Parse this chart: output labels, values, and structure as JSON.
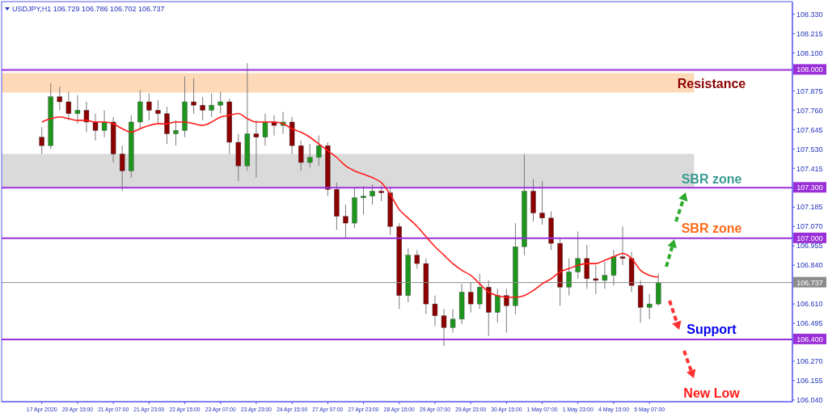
{
  "chart_data": {
    "type": "candlestick",
    "title": "USDJPY,H1  106.729 106.786 106.702 106.737",
    "categories": [
      "17 Apr 2020",
      null,
      null,
      null,
      "20 Apr 15:00",
      null,
      null,
      null,
      "21 Apr 07:00",
      null,
      null,
      null,
      "21 Apr 23:00",
      null,
      null,
      null,
      "22 Apr 15:00",
      null,
      null,
      null,
      "23 Apr 07:00",
      null,
      null,
      null,
      "23 Apr 23:00",
      null,
      null,
      null,
      "24 Apr 15:00",
      null,
      null,
      null,
      "27 Apr 07:00",
      null,
      null,
      null,
      "27 Apr 23:00",
      null,
      null,
      null,
      "28 Apr 15:00",
      null,
      null,
      null,
      "29 Apr 07:00",
      null,
      null,
      null,
      "29 Apr 23:00",
      null,
      null,
      null,
      "30 Apr 15:00",
      null,
      null,
      null,
      "1 May 07:00",
      null,
      null,
      null,
      "1 May 23:00",
      null,
      null,
      null,
      "4 May 15:00",
      null,
      null,
      null,
      "5 May 07:00",
      null
    ],
    "ohlc": [
      [
        107.6,
        107.66,
        107.5,
        107.55
      ],
      [
        107.55,
        107.92,
        107.53,
        107.84
      ],
      [
        107.84,
        107.9,
        107.76,
        107.81
      ],
      [
        107.81,
        107.87,
        107.7,
        107.74
      ],
      [
        107.74,
        107.85,
        107.68,
        107.76
      ],
      [
        107.76,
        107.81,
        107.63,
        107.69
      ],
      [
        107.69,
        107.74,
        107.58,
        107.64
      ],
      [
        107.64,
        107.76,
        107.6,
        107.69
      ],
      [
        107.69,
        107.72,
        107.45,
        107.5
      ],
      [
        107.5,
        107.55,
        107.28,
        107.4
      ],
      [
        107.4,
        107.73,
        107.36,
        107.69
      ],
      [
        107.69,
        107.88,
        107.65,
        107.81
      ],
      [
        107.81,
        107.86,
        107.7,
        107.76
      ],
      [
        107.76,
        107.82,
        107.68,
        107.74
      ],
      [
        107.74,
        107.78,
        107.56,
        107.62
      ],
      [
        107.62,
        107.7,
        107.55,
        107.64
      ],
      [
        107.64,
        107.96,
        107.6,
        107.81
      ],
      [
        107.81,
        107.95,
        107.74,
        107.79
      ],
      [
        107.79,
        107.84,
        107.7,
        107.76
      ],
      [
        107.76,
        107.86,
        107.72,
        107.79
      ],
      [
        107.79,
        107.87,
        107.74,
        107.81
      ],
      [
        107.81,
        107.83,
        107.5,
        107.57
      ],
      [
        107.57,
        107.62,
        107.34,
        107.43
      ],
      [
        107.43,
        108.04,
        107.4,
        107.62
      ],
      [
        107.62,
        107.7,
        107.36,
        107.6
      ],
      [
        107.6,
        107.74,
        107.55,
        107.69
      ],
      [
        107.69,
        107.73,
        107.61,
        107.67
      ],
      [
        107.67,
        107.75,
        107.62,
        107.69
      ],
      [
        107.69,
        107.72,
        107.5,
        107.55
      ],
      [
        107.55,
        107.58,
        107.4,
        107.45
      ],
      [
        107.45,
        107.56,
        107.42,
        107.48
      ],
      [
        107.48,
        107.61,
        107.43,
        107.55
      ],
      [
        107.55,
        107.57,
        107.25,
        107.29
      ],
      [
        107.29,
        107.33,
        107.05,
        107.13
      ],
      [
        107.13,
        107.2,
        107.0,
        107.09
      ],
      [
        107.09,
        107.3,
        107.06,
        107.24
      ],
      [
        107.24,
        107.31,
        107.14,
        107.25
      ],
      [
        107.25,
        107.32,
        107.2,
        107.28
      ],
      [
        107.28,
        107.31,
        107.22,
        107.27
      ],
      [
        107.27,
        107.3,
        107.02,
        107.07
      ],
      [
        107.07,
        107.09,
        106.58,
        106.66
      ],
      [
        106.66,
        106.94,
        106.62,
        106.9
      ],
      [
        106.9,
        106.93,
        106.82,
        106.85
      ],
      [
        106.85,
        106.88,
        106.55,
        106.61
      ],
      [
        106.61,
        106.66,
        106.48,
        106.54
      ],
      [
        106.54,
        106.58,
        106.36,
        106.47
      ],
      [
        106.47,
        106.58,
        106.44,
        106.52
      ],
      [
        106.52,
        106.73,
        106.49,
        106.68
      ],
      [
        106.68,
        106.74,
        106.56,
        106.61
      ],
      [
        106.61,
        106.79,
        106.58,
        106.71
      ],
      [
        106.71,
        106.75,
        106.42,
        106.56
      ],
      [
        106.56,
        106.7,
        106.5,
        106.66
      ],
      [
        106.66,
        106.7,
        106.44,
        106.6
      ],
      [
        106.6,
        107.09,
        106.55,
        106.95
      ],
      [
        106.95,
        107.5,
        106.9,
        107.28
      ],
      [
        107.28,
        107.35,
        107.1,
        107.15
      ],
      [
        107.15,
        107.34,
        107.08,
        107.12
      ],
      [
        107.12,
        107.16,
        106.93,
        106.97
      ],
      [
        106.97,
        107.0,
        106.6,
        106.71
      ],
      [
        106.71,
        106.88,
        106.66,
        106.8
      ],
      [
        106.8,
        107.04,
        106.76,
        106.88
      ],
      [
        106.88,
        106.96,
        106.7,
        106.76
      ],
      [
        106.76,
        106.84,
        106.67,
        106.75
      ],
      [
        106.75,
        106.86,
        106.7,
        106.78
      ],
      [
        106.78,
        106.93,
        106.72,
        106.89
      ],
      [
        106.89,
        107.07,
        106.84,
        106.88
      ],
      [
        106.88,
        106.92,
        106.68,
        106.72
      ],
      [
        106.72,
        106.75,
        106.5,
        106.59
      ],
      [
        106.59,
        106.67,
        106.52,
        106.61
      ],
      [
        106.61,
        106.79,
        106.6,
        106.737
      ]
    ],
    "colors": [
      "#8b0000",
      "#1e961e",
      "#8b0000",
      "#8b0000",
      "#1e961e",
      "#8b0000",
      "#8b0000",
      "#1e961e",
      "#8b0000",
      "#8b0000",
      "#1e961e",
      "#1e961e",
      "#8b0000",
      "#8b0000",
      "#8b0000",
      "#1e961e",
      "#1e961e",
      "#8b0000",
      "#8b0000",
      "#1e961e",
      "#1e961e",
      "#8b0000",
      "#8b0000",
      "#1e961e",
      "#8b0000",
      "#1e961e",
      "#8b0000",
      "#1e961e",
      "#8b0000",
      "#8b0000",
      "#1e961e",
      "#1e961e",
      "#8b0000",
      "#8b0000",
      "#8b0000",
      "#1e961e",
      "#1e961e",
      "#1e961e",
      "#8b0000",
      "#8b0000",
      "#8b0000",
      "#1e961e",
      "#8b0000",
      "#8b0000",
      "#8b0000",
      "#8b0000",
      "#1e961e",
      "#1e961e",
      "#8b0000",
      "#1e961e",
      "#8b0000",
      "#1e961e",
      "#8b0000",
      "#1e961e",
      "#1e961e",
      "#8b0000",
      "#8b0000",
      "#8b0000",
      "#8b0000",
      "#1e961e",
      "#1e961e",
      "#8b0000",
      "#8b0000",
      "#1e961e",
      "#1e961e",
      "#8b0000",
      "#8b0000",
      "#8b0000",
      "#1e961e",
      "#1e961e"
    ],
    "series": [
      {
        "type": "line",
        "color": "#ff1a1a",
        "values": [
          107.69,
          107.71,
          107.72,
          107.71,
          107.7,
          107.7,
          107.69,
          107.69,
          107.68,
          107.65,
          107.63,
          107.65,
          107.67,
          107.68,
          107.68,
          107.69,
          107.69,
          107.68,
          107.67,
          107.69,
          107.72,
          107.73,
          107.74,
          107.71,
          107.69,
          107.69,
          107.69,
          107.68,
          107.65,
          107.63,
          107.6,
          107.56,
          107.52,
          107.48,
          107.43,
          107.4,
          107.38,
          107.36,
          107.33,
          107.26,
          107.17,
          107.12,
          107.07,
          107.01,
          106.95,
          106.9,
          106.85,
          106.81,
          106.78,
          106.73,
          106.68,
          106.66,
          106.65,
          106.65,
          106.66,
          106.69,
          106.73,
          106.76,
          106.8,
          106.82,
          106.84,
          106.85,
          106.85,
          106.87,
          106.89,
          106.91,
          106.88,
          106.81,
          106.78,
          106.77
        ]
      }
    ],
    "ylim": [
      106.03,
      108.4
    ],
    "yticks": [
      {
        "value": 108.33,
        "label": "108.330"
      },
      {
        "value": 108.215,
        "label": "108.215"
      },
      {
        "value": 108.1,
        "label": "108.100"
      },
      {
        "value": 107.875,
        "label": "107.875"
      },
      {
        "value": 107.76,
        "label": "107.760"
      },
      {
        "value": 107.645,
        "label": "107.645"
      },
      {
        "value": 107.53,
        "label": "107.530"
      },
      {
        "value": 107.415,
        "label": "107.415"
      },
      {
        "value": 107.185,
        "label": "107.185"
      },
      {
        "value": 107.07,
        "label": "107.070"
      },
      {
        "value": 106.955,
        "label": "106.955"
      },
      {
        "value": 106.84,
        "label": "106.840"
      },
      {
        "value": 106.61,
        "label": "106.610"
      },
      {
        "value": 106.495,
        "label": "106.495"
      },
      {
        "value": 106.27,
        "label": "106.270"
      },
      {
        "value": 106.155,
        "label": "106.155"
      },
      {
        "value": 106.04,
        "label": "106.040"
      }
    ],
    "ref_lines": [
      {
        "axis": "y",
        "value": 108.0,
        "label": "108.000",
        "color": "#9b30d9"
      },
      {
        "axis": "y",
        "value": 107.3,
        "label": "107.300",
        "color": "#9b30d9"
      },
      {
        "axis": "y",
        "value": 107.0,
        "label": "107.000",
        "color": "#9b30d9"
      },
      {
        "axis": "y",
        "value": 106.4,
        "label": "106.400",
        "color": "#9b30d9"
      },
      {
        "axis": "y",
        "value": 106.737,
        "label": "106.737",
        "color": "#8c8c8c"
      }
    ],
    "bands": [
      {
        "axis": "y",
        "from": 107.865,
        "to": 107.98,
        "label": "Resistance",
        "color": "#fdd9b8"
      },
      {
        "axis": "y",
        "from": 107.3,
        "to": 107.5,
        "label": "SBR zone",
        "color": "#dadada"
      }
    ],
    "annotations": [
      {
        "text": "SBR zone",
        "y": 107.0
      },
      {
        "text": "Support",
        "y": 106.4
      },
      "New Low"
    ]
  }
}
